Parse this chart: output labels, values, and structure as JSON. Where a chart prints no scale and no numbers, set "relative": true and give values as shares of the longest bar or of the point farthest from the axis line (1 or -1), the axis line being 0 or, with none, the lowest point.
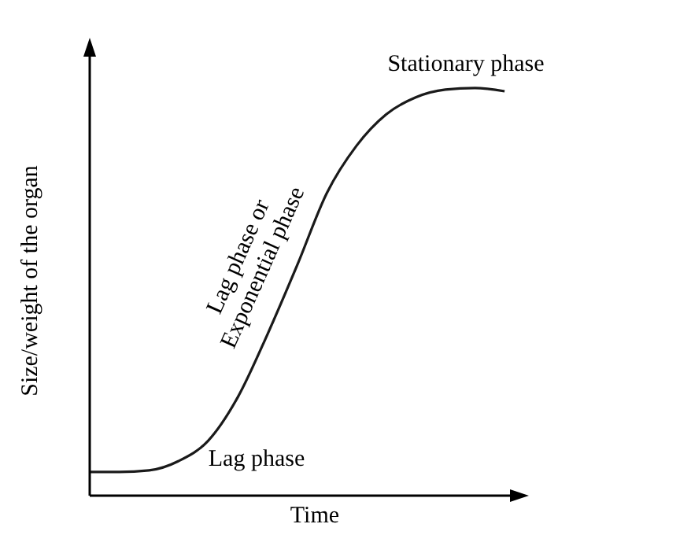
{
  "chart_data": {
    "type": "line",
    "relative": true,
    "xlabel": "Time",
    "ylabel": "Size/weight of the organ",
    "categories": [
      null,
      null,
      null,
      null,
      null,
      null,
      null,
      null,
      null,
      null,
      null,
      null,
      null,
      null,
      null
    ],
    "series": [
      {
        "color": "#1a1a1a",
        "values": [
          0.058,
          0.058,
          0.062,
          0.085,
          0.135,
          0.242,
          0.396,
          0.565,
          0.742,
          0.858,
          0.935,
          0.977,
          0.996,
          1,
          0.992
        ]
      }
    ],
    "annotations": [
      "Stationary phase",
      "Lag phase or Exponential phase",
      "Lag phase"
    ],
    "marker": "none",
    "line_style": "solid"
  }
}
